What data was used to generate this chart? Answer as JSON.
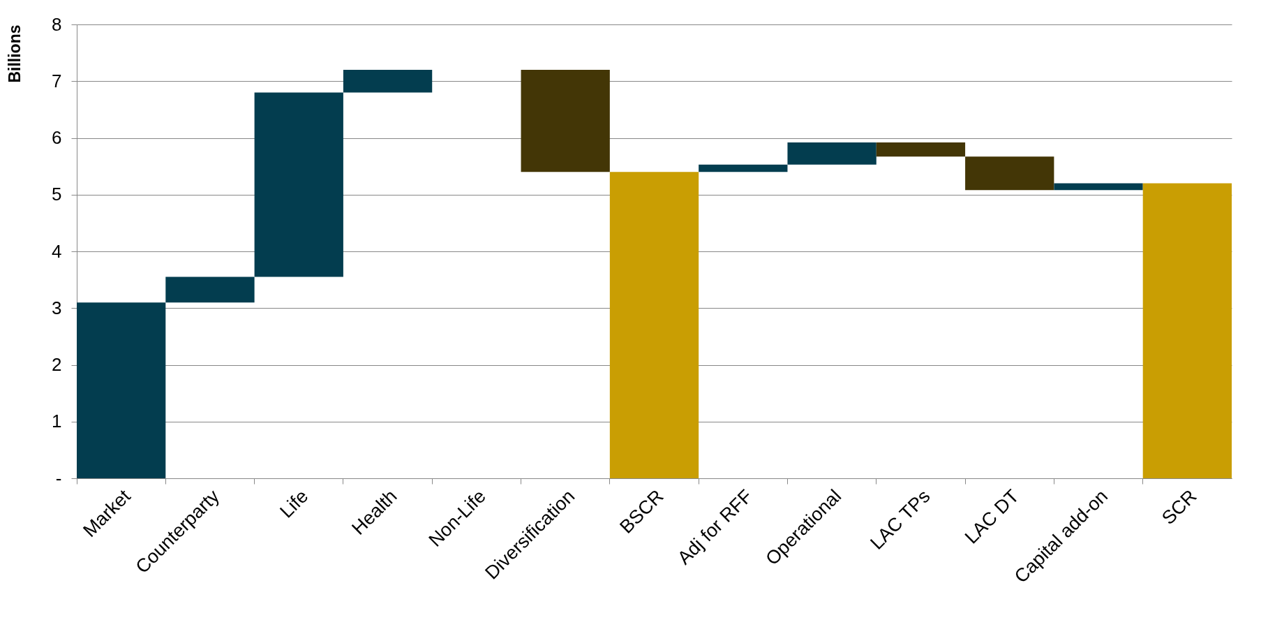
{
  "chart_data": {
    "type": "bar",
    "ylabel": "Billions",
    "categories": [
      "Market",
      "Counterparty",
      "Life",
      "Health",
      "Non-Life",
      "Diversification",
      "BSCR",
      "Adj for RFF",
      "Operational",
      "LAC TPs",
      "LAC DT",
      "Capital add-on",
      "SCR"
    ],
    "base": [
      0,
      3.1,
      3.55,
      6.8,
      null,
      7.2,
      0,
      5.4,
      5.53,
      5.92,
      5.67,
      5.08,
      0
    ],
    "values": [
      3.1,
      0.45,
      3.25,
      0.4,
      null,
      -1.8,
      5.4,
      0.13,
      0.39,
      -0.25,
      -0.59,
      0.12,
      5.2
    ],
    "colors": [
      "#033d4f",
      "#033d4f",
      "#033d4f",
      "#033d4f",
      "#033d4f",
      "#433606",
      "#c99e03",
      "#033d4f",
      "#033d4f",
      "#433606",
      "#433606",
      "#033d4f",
      "#c99e03"
    ],
    "ylim": [
      0,
      8
    ],
    "yticks": [
      {
        "value": 0,
        "label": "-"
      },
      1,
      2,
      3,
      4,
      5,
      6,
      7,
      8
    ],
    "grid": "y",
    "legend": false
  }
}
